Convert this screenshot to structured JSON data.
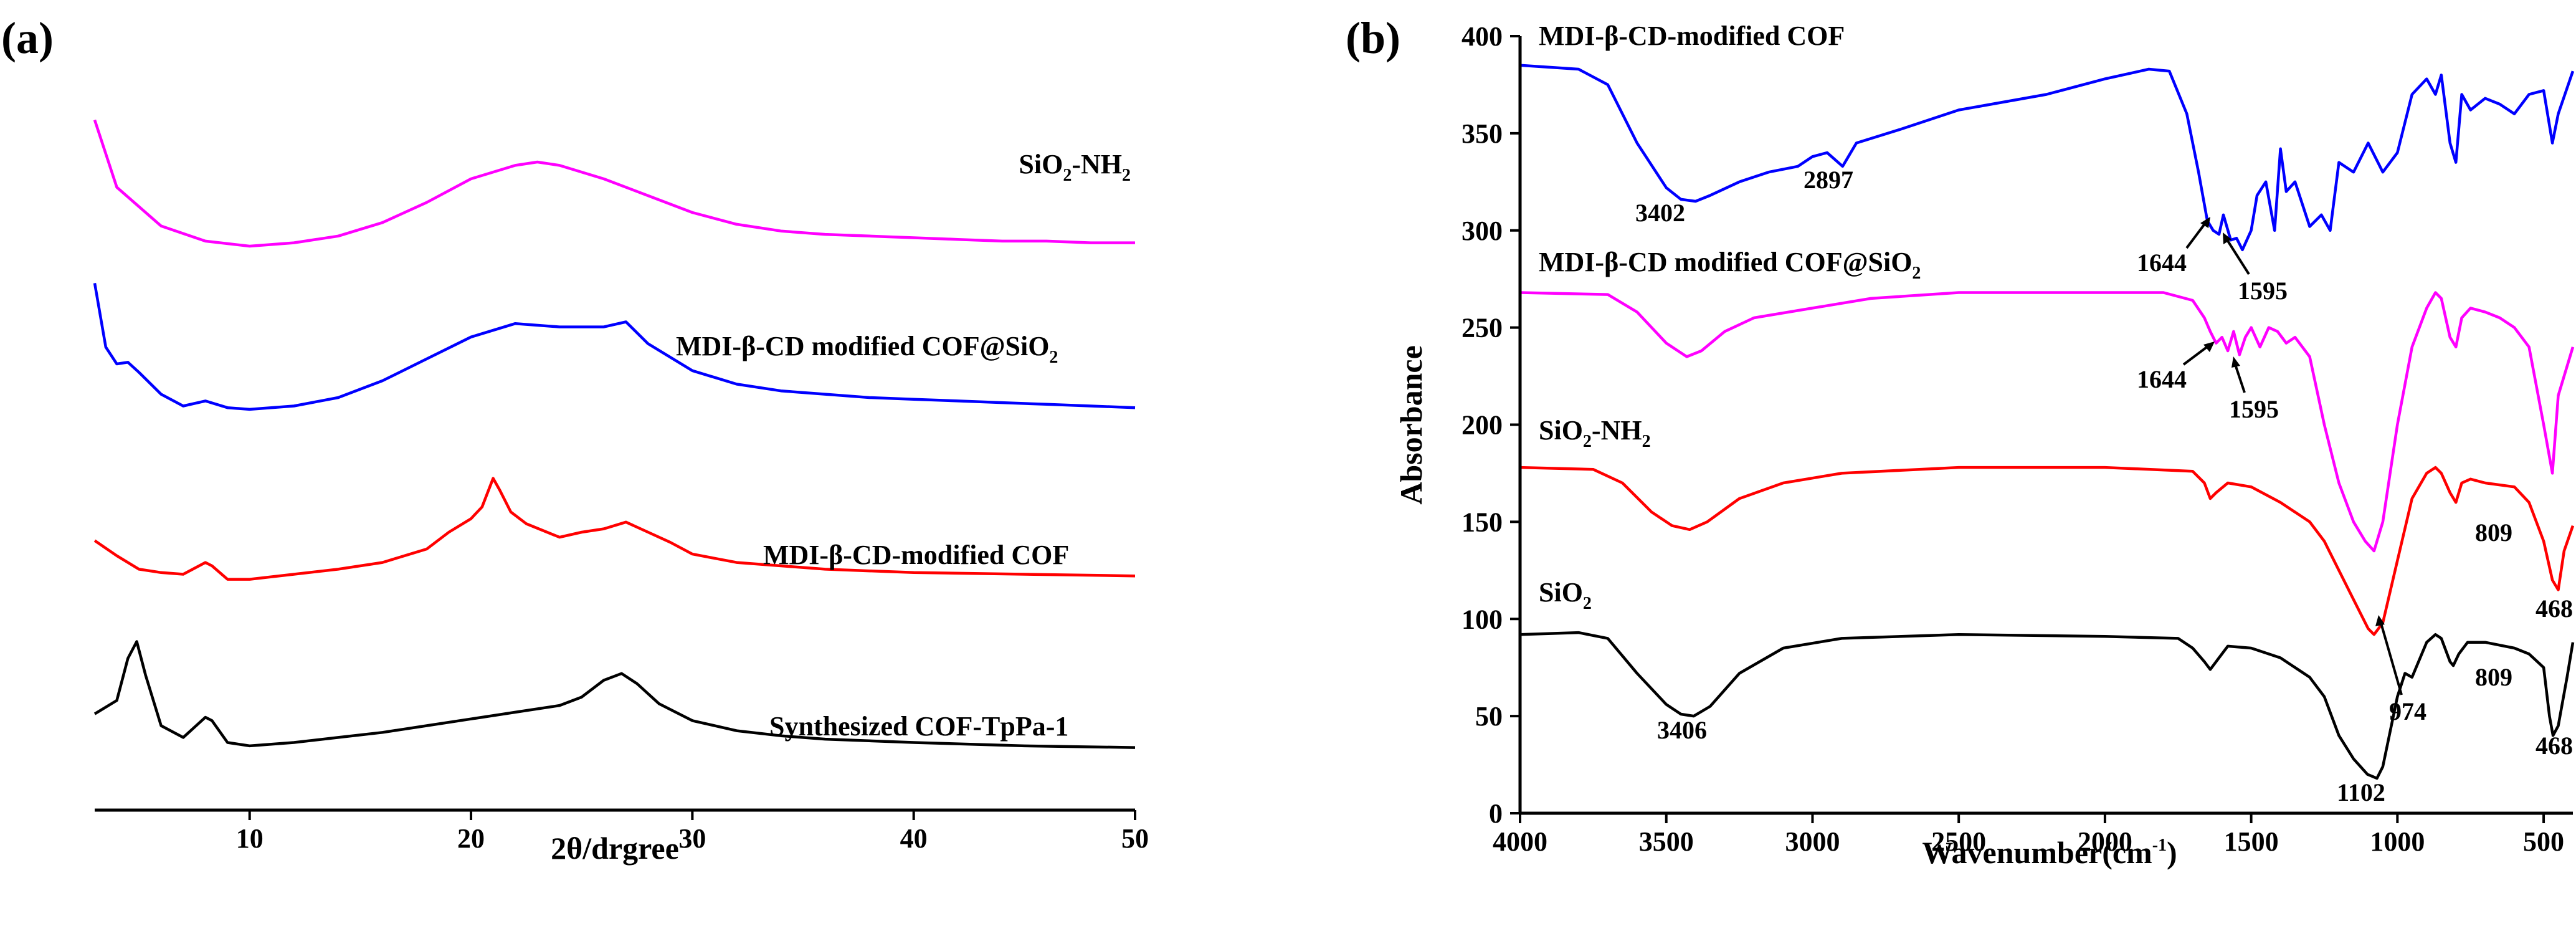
{
  "chart_data": [
    {
      "id": "a",
      "type": "line",
      "panel_label": "(a)",
      "xlabel": "2θ/drgree",
      "ylabel": "",
      "xlim": [
        3,
        50
      ],
      "xticks": [
        10,
        20,
        30,
        40,
        50
      ],
      "show_y_axis": false,
      "grid": false,
      "series": [
        {
          "name": "SiO2-NH2",
          "label_main": "SiO",
          "label_sub": "2",
          "label_tail": "-NH",
          "label_sub2": "2",
          "color": "#ff00ff",
          "offset": 3.0,
          "x": [
            3.0,
            4.0,
            6.0,
            8.0,
            10.0,
            12.0,
            14.0,
            16.0,
            18.0,
            20.0,
            22.0,
            23.0,
            24.0,
            26.0,
            28.0,
            30.0,
            32.0,
            34.0,
            36.0,
            38.0,
            40.0,
            42.0,
            44.0,
            46.0,
            48.0,
            50.0
          ],
          "y": [
            0.75,
            0.35,
            0.12,
            0.03,
            0.0,
            0.02,
            0.06,
            0.14,
            0.26,
            0.4,
            0.48,
            0.5,
            0.48,
            0.4,
            0.3,
            0.2,
            0.13,
            0.09,
            0.07,
            0.06,
            0.05,
            0.04,
            0.03,
            0.03,
            0.02,
            0.02
          ]
        },
        {
          "name": "MDI-β-CD modified COF@SiO2",
          "label_main": "MDI-β-CD modified COF@SiO",
          "label_sub": "2",
          "color": "#0000ff",
          "offset": 2.0,
          "x": [
            3.0,
            3.5,
            4.0,
            4.5,
            5.0,
            6.0,
            7.0,
            8.0,
            9.0,
            10.0,
            12.0,
            14.0,
            16.0,
            18.0,
            20.0,
            22.0,
            24.0,
            26.0,
            27.0,
            28.0,
            30.0,
            32.0,
            34.0,
            36.0,
            38.0,
            40.0,
            42.0,
            44.0,
            46.0,
            48.0,
            50.0
          ],
          "y": [
            0.78,
            0.4,
            0.3,
            0.31,
            0.25,
            0.12,
            0.05,
            0.08,
            0.04,
            0.03,
            0.05,
            0.1,
            0.2,
            0.33,
            0.46,
            0.54,
            0.52,
            0.52,
            0.55,
            0.42,
            0.26,
            0.18,
            0.14,
            0.12,
            0.1,
            0.09,
            0.08,
            0.07,
            0.06,
            0.05,
            0.04
          ]
        },
        {
          "name": "MDI-β-CD-modified COF",
          "label_main": "MDI-β-CD-modified COF",
          "color": "#ff0000",
          "offset": 1.0,
          "x": [
            3.0,
            4.0,
            5.0,
            6.0,
            7.0,
            8.0,
            8.3,
            9.0,
            10.0,
            12.0,
            14.0,
            16.0,
            18.0,
            19.0,
            20.0,
            20.5,
            21.0,
            21.3,
            21.8,
            22.5,
            24.0,
            25.0,
            26.0,
            27.0,
            28.0,
            29.0,
            30.0,
            32.0,
            34.0,
            36.0,
            40.0,
            45.0,
            50.0
          ],
          "y": [
            0.25,
            0.16,
            0.08,
            0.06,
            0.05,
            0.12,
            0.1,
            0.02,
            0.02,
            0.05,
            0.08,
            0.12,
            0.2,
            0.3,
            0.38,
            0.45,
            0.62,
            0.55,
            0.42,
            0.35,
            0.27,
            0.3,
            0.32,
            0.36,
            0.3,
            0.24,
            0.17,
            0.12,
            0.1,
            0.08,
            0.06,
            0.05,
            0.04
          ]
        },
        {
          "name": "Synthesized COF-TpPa-1",
          "label_main": "Synthesized COF-TpPa-1",
          "color": "#000000",
          "offset": 0.0,
          "x": [
            3.0,
            4.0,
            4.5,
            4.9,
            5.3,
            6.0,
            7.0,
            8.0,
            8.3,
            9.0,
            10.0,
            12.0,
            14.0,
            16.0,
            18.0,
            20.0,
            22.0,
            24.0,
            25.0,
            26.0,
            26.8,
            27.5,
            28.5,
            30.0,
            32.0,
            34.0,
            36.0,
            40.0,
            45.0,
            50.0
          ],
          "y": [
            0.22,
            0.3,
            0.55,
            0.65,
            0.45,
            0.15,
            0.08,
            0.2,
            0.18,
            0.05,
            0.03,
            0.05,
            0.08,
            0.11,
            0.15,
            0.19,
            0.23,
            0.27,
            0.32,
            0.42,
            0.46,
            0.4,
            0.28,
            0.18,
            0.12,
            0.09,
            0.07,
            0.05,
            0.03,
            0.02
          ]
        }
      ]
    },
    {
      "id": "b",
      "type": "line",
      "panel_label": "(b)",
      "xlabel_main": "Wavenumber(cm",
      "xlabel_sup": "-1",
      "xlabel_tail": ")",
      "ylabel": "Absorbance",
      "xlim": [
        4000,
        400
      ],
      "ylim": [
        0,
        400
      ],
      "xticks": [
        4000,
        3500,
        3000,
        2500,
        2000,
        1500,
        1000,
        500
      ],
      "yticks": [
        0,
        50,
        100,
        150,
        200,
        250,
        300,
        350,
        400
      ],
      "grid": false,
      "series": [
        {
          "name": "MDI-β-CD-modified COF",
          "label_main": "MDI-β-CD-modified COF",
          "color": "#0000ff",
          "x": [
            4000,
            3800,
            3700,
            3600,
            3500,
            3450,
            3400,
            3350,
            3250,
            3150,
            3050,
            3000,
            2950,
            2897,
            2850,
            2700,
            2500,
            2200,
            2000,
            1850,
            1780,
            1720,
            1680,
            1650,
            1630,
            1610,
            1595,
            1570,
            1550,
            1530,
            1500,
            1480,
            1450,
            1420,
            1400,
            1380,
            1350,
            1300,
            1260,
            1230,
            1200,
            1150,
            1100,
            1050,
            1000,
            950,
            900,
            870,
            850,
            820,
            800,
            780,
            750,
            700,
            650,
            600,
            550,
            500,
            470,
            450,
            400
          ],
          "y": [
            385,
            383,
            375,
            345,
            322,
            316,
            315,
            318,
            325,
            330,
            333,
            338,
            340,
            333,
            345,
            352,
            362,
            370,
            378,
            383,
            382,
            360,
            330,
            305,
            300,
            298,
            308,
            295,
            296,
            290,
            300,
            318,
            325,
            300,
            342,
            320,
            325,
            302,
            308,
            300,
            335,
            330,
            345,
            330,
            340,
            370,
            378,
            370,
            380,
            345,
            335,
            370,
            362,
            368,
            365,
            360,
            370,
            372,
            345,
            360,
            382
          ]
        },
        {
          "name": "MDI-β-CD modified COF@SiO2",
          "label_main": "MDI-β-CD modified COF@SiO",
          "label_sub": "2",
          "color": "#ff00ff",
          "x": [
            4000,
            3700,
            3600,
            3500,
            3430,
            3380,
            3300,
            3200,
            3000,
            2800,
            2500,
            2000,
            1800,
            1700,
            1660,
            1640,
            1620,
            1600,
            1580,
            1560,
            1540,
            1520,
            1500,
            1470,
            1440,
            1410,
            1380,
            1350,
            1300,
            1250,
            1200,
            1150,
            1110,
            1080,
            1050,
            1000,
            950,
            900,
            870,
            850,
            820,
            800,
            780,
            750,
            700,
            650,
            600,
            550,
            500,
            470,
            450,
            400
          ],
          "y": [
            268,
            267,
            258,
            242,
            235,
            238,
            248,
            255,
            260,
            265,
            268,
            268,
            268,
            264,
            255,
            248,
            242,
            245,
            238,
            248,
            236,
            245,
            250,
            240,
            250,
            248,
            242,
            245,
            235,
            200,
            170,
            150,
            140,
            135,
            150,
            200,
            240,
            260,
            268,
            265,
            245,
            240,
            255,
            260,
            258,
            255,
            250,
            240,
            200,
            175,
            215,
            240
          ]
        },
        {
          "name": "SiO2-NH2",
          "label_main": "SiO",
          "label_sub": "2",
          "label_tail": "-NH",
          "label_sub2": "2",
          "color": "#ff0000",
          "x": [
            4000,
            3750,
            3650,
            3550,
            3480,
            3420,
            3360,
            3250,
            3100,
            2900,
            2500,
            2000,
            1700,
            1660,
            1640,
            1620,
            1580,
            1500,
            1400,
            1300,
            1250,
            1200,
            1150,
            1100,
            1080,
            1050,
            1000,
            950,
            900,
            870,
            850,
            820,
            800,
            780,
            750,
            700,
            600,
            550,
            500,
            470,
            450,
            430,
            400
          ],
          "y": [
            178,
            177,
            170,
            155,
            148,
            146,
            150,
            162,
            170,
            175,
            178,
            178,
            176,
            170,
            162,
            165,
            170,
            168,
            160,
            150,
            140,
            125,
            110,
            95,
            92,
            98,
            130,
            162,
            175,
            178,
            175,
            165,
            160,
            170,
            172,
            170,
            168,
            160,
            140,
            120,
            115,
            135,
            148
          ]
        },
        {
          "name": "SiO2",
          "label_main": "SiO",
          "label_sub": "2",
          "color": "#000000",
          "x": [
            4000,
            3800,
            3700,
            3600,
            3500,
            3450,
            3406,
            3350,
            3250,
            3100,
            2900,
            2500,
            2000,
            1750,
            1700,
            1660,
            1640,
            1620,
            1580,
            1500,
            1400,
            1300,
            1250,
            1200,
            1150,
            1102,
            1070,
            1050,
            1000,
            974,
            950,
            900,
            870,
            850,
            820,
            809,
            790,
            760,
            700,
            600,
            550,
            500,
            480,
            468,
            450,
            420,
            400
          ],
          "y": [
            92,
            93,
            90,
            72,
            56,
            51,
            50,
            55,
            72,
            85,
            90,
            92,
            91,
            90,
            85,
            78,
            74,
            78,
            86,
            85,
            80,
            70,
            60,
            40,
            28,
            20,
            18,
            24,
            60,
            72,
            70,
            88,
            92,
            90,
            78,
            76,
            82,
            88,
            88,
            85,
            82,
            75,
            50,
            40,
            45,
            70,
            88
          ]
        }
      ],
      "annotations": [
        {
          "text": "3402",
          "x": 3402,
          "y": 315
        },
        {
          "text": "2897",
          "x": 2897,
          "y": 333
        },
        {
          "text": "1644",
          "x": 1644,
          "y": 301
        },
        {
          "text": "1595",
          "x": 1595,
          "y": 299
        },
        {
          "text": "1644",
          "x": 1644,
          "y": 247
        },
        {
          "text": "1595",
          "x": 1595,
          "y": 242
        },
        {
          "text": "809",
          "x": 809,
          "y": 160
        },
        {
          "text": "468",
          "x": 468,
          "y": 115
        },
        {
          "text": "3406",
          "x": 3406,
          "y": 50
        },
        {
          "text": "974",
          "x": 974,
          "y": 72
        },
        {
          "text": "809",
          "x": 809,
          "y": 76
        },
        {
          "text": "1102",
          "x": 1102,
          "y": 18
        },
        {
          "text": "468",
          "x": 468,
          "y": 40
        }
      ]
    }
  ]
}
